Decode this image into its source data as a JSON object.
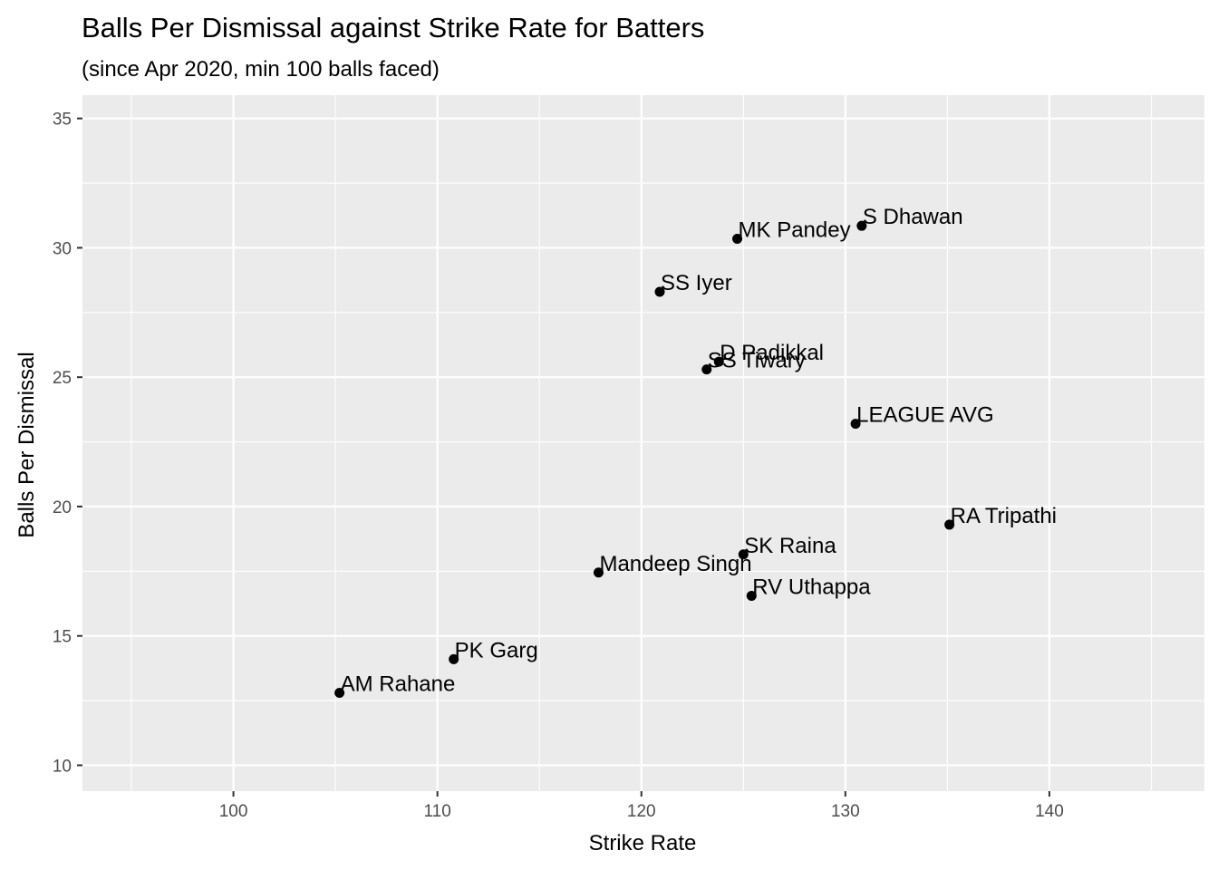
{
  "chart_data": {
    "type": "scatter",
    "title": "Balls Per Dismissal against Strike Rate for Batters",
    "subtitle": "(since Apr 2020, min 100 balls faced)",
    "xlabel": "Strike Rate",
    "ylabel": "Balls Per Dismissal",
    "xlim": [
      92.6,
      147.6
    ],
    "ylim": [
      9.0,
      35.9
    ],
    "x_ticks": [
      100,
      110,
      120,
      130,
      140
    ],
    "y_ticks": [
      10,
      15,
      20,
      25,
      30,
      35
    ],
    "x_tick_labels": [
      "100",
      "110",
      "120",
      "130",
      "140"
    ],
    "y_tick_labels": [
      "10",
      "15",
      "20",
      "25",
      "30",
      "35"
    ],
    "grid": true,
    "legend": "none",
    "colors": {
      "panel": "#ebebeb",
      "grid": "#ffffff",
      "point": "#000000"
    },
    "points": [
      {
        "label": "S Dhawan",
        "x": 130.8,
        "y": 30.85
      },
      {
        "label": "MK Pandey",
        "x": 124.7,
        "y": 30.35
      },
      {
        "label": "SS Iyer",
        "x": 120.9,
        "y": 28.3
      },
      {
        "label": "D Padikkal",
        "x": 123.8,
        "y": 25.6
      },
      {
        "label": "SS Tiwary",
        "x": 123.2,
        "y": 25.3
      },
      {
        "label": "LEAGUE AVG",
        "x": 130.5,
        "y": 23.2
      },
      {
        "label": "RA Tripathi",
        "x": 135.1,
        "y": 19.3
      },
      {
        "label": "SK Raina",
        "x": 125.0,
        "y": 18.15
      },
      {
        "label": "Mandeep Singh",
        "x": 117.9,
        "y": 17.45
      },
      {
        "label": "RV Uthappa",
        "x": 125.4,
        "y": 16.55
      },
      {
        "label": "PK Garg",
        "x": 110.8,
        "y": 14.1
      },
      {
        "label": "AM Rahane",
        "x": 105.2,
        "y": 12.8
      }
    ]
  }
}
